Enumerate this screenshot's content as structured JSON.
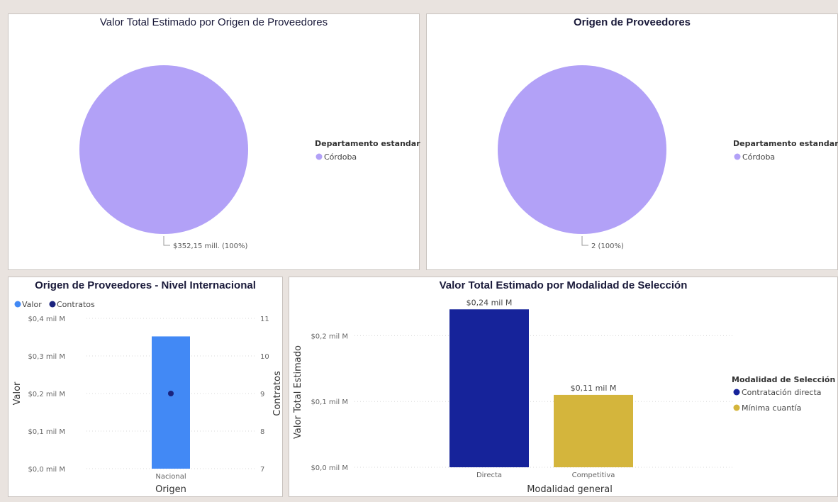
{
  "chart_data": [
    {
      "type": "pie",
      "title": "Valor Total Estimado por Origen de Proveedores",
      "legend_title": "Departamento estandar",
      "legend_position": "right",
      "slices": [
        {
          "label": "Córdoba",
          "value": 352.15,
          "data_label": "$352,15 mill. (100%)",
          "color": "#b2a1f7"
        }
      ]
    },
    {
      "type": "pie",
      "title": "Origen de Proveedores",
      "legend_title": "Departamento estandar",
      "legend_position": "right",
      "slices": [
        {
          "label": "Córdoba",
          "value": 2,
          "data_label": "2 (100%)",
          "color": "#b2a1f7"
        }
      ]
    },
    {
      "type": "bar",
      "title": "Origen de Proveedores - Nivel Internacional",
      "legend_position": "top-left",
      "categories": [
        "Nacional"
      ],
      "xlabel": "Origen",
      "ylabel": "Valor",
      "y2label": "Contratos",
      "ylim": [
        0,
        0.4
      ],
      "y2lim": [
        7,
        11
      ],
      "yticks": [
        "$0,0 mil M",
        "$0,1 mil M",
        "$0,2 mil M",
        "$0,3 mil M",
        "$0,4 mil M"
      ],
      "y2ticks": [
        "7",
        "8",
        "9",
        "10",
        "11"
      ],
      "series": [
        {
          "name": "Valor",
          "type": "bar",
          "values": [
            0.352
          ],
          "color": "#4289f5"
        },
        {
          "name": "Contratos",
          "type": "point",
          "values": [
            9
          ],
          "color": "#1a237e"
        }
      ]
    },
    {
      "type": "bar",
      "title": "Valor Total Estimado por Modalidad de Selección",
      "categories": [
        "Directa",
        "Competitiva"
      ],
      "xlabel": "Modalidad general",
      "ylabel": "Valor Total Estimado",
      "ylim": [
        0,
        0.25
      ],
      "yticks": [
        "$0,0 mil M",
        "$0,1 mil M",
        "$0,2 mil M"
      ],
      "legend_title": "Modalidad de Selección",
      "legend_position": "right",
      "series": [
        {
          "name": "Contratación directa",
          "values": [
            0.24,
            0
          ],
          "data_label": "$0,24 mil M",
          "color": "#16239a"
        },
        {
          "name": "Mínima cuantía",
          "values": [
            0,
            0.11
          ],
          "data_label": "$0,11 mil M",
          "color": "#d4b53c"
        }
      ]
    }
  ]
}
